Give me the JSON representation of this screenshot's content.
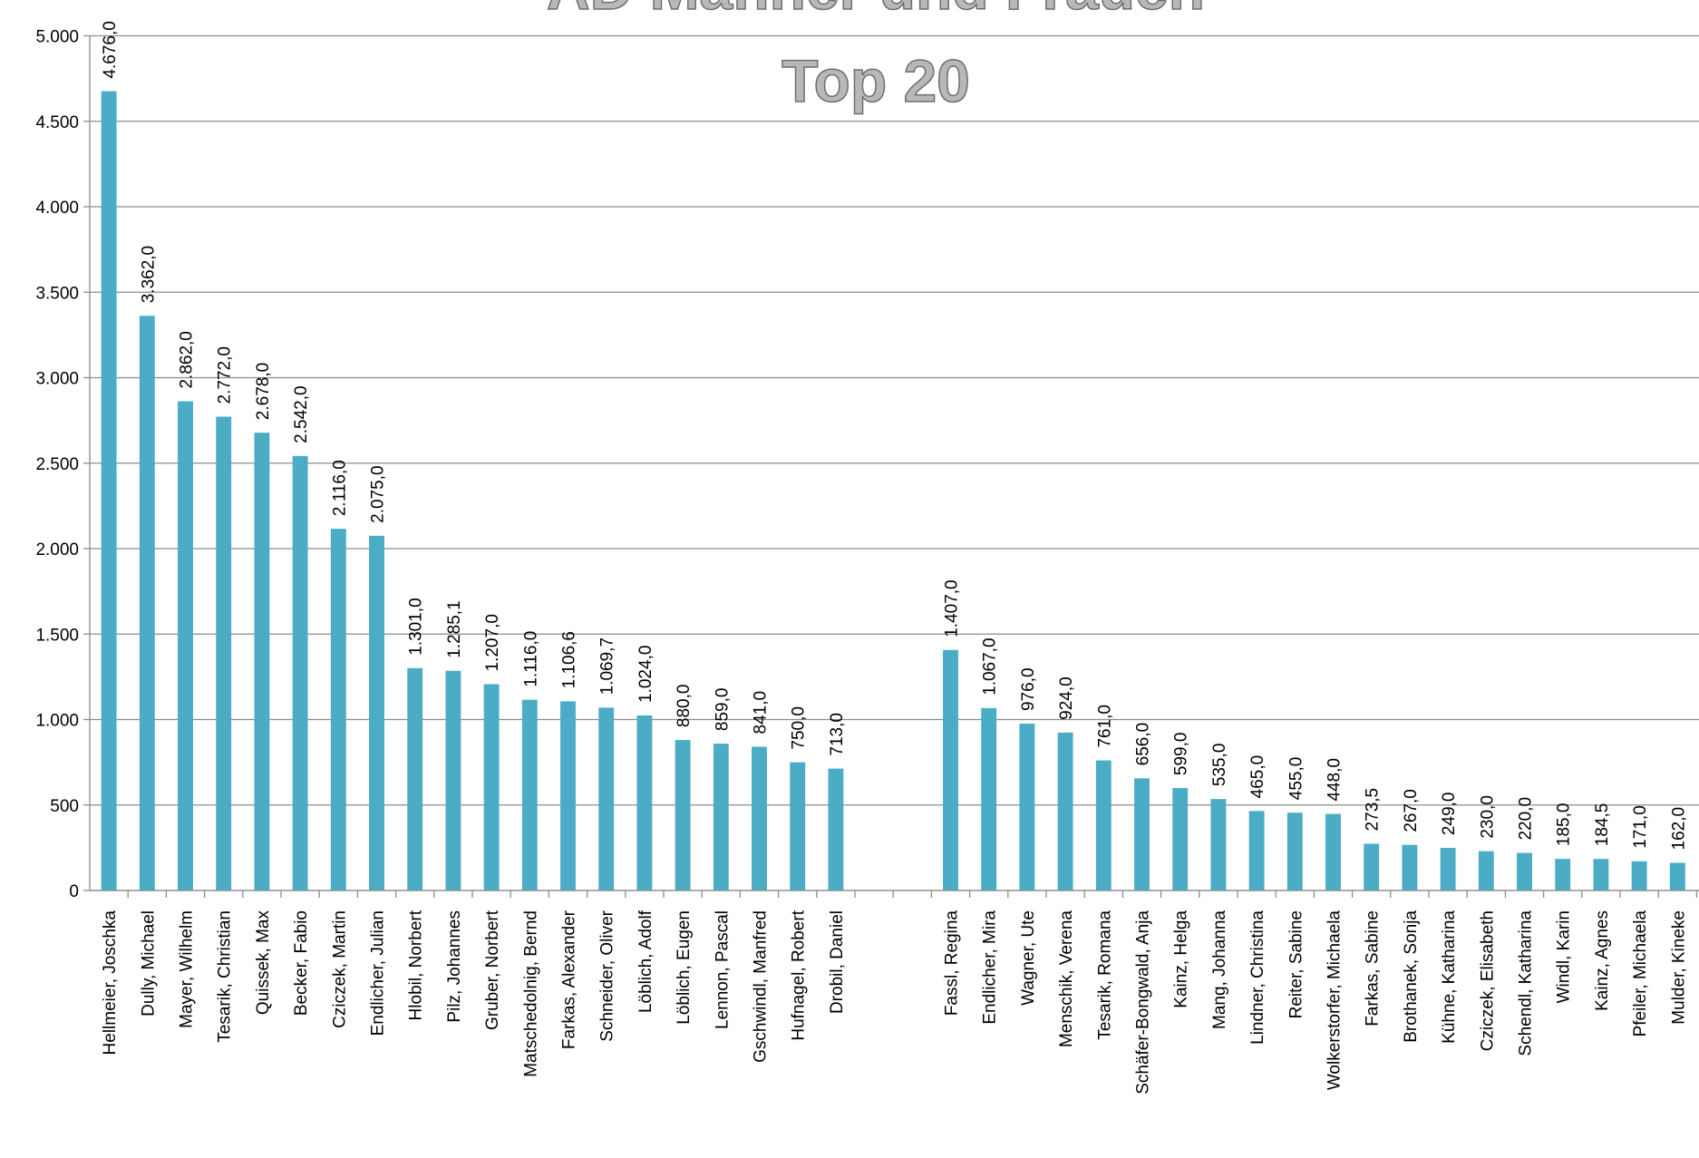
{
  "chart_data": {
    "type": "bar",
    "title": "AD Männer und Frauen",
    "subtitle": "Top 20",
    "categories": [
      "Hellmeier, Joschka",
      "Dully, Michael",
      "Mayer, Wilhelm",
      "Tesarik, Christian",
      "Quissek, Max",
      "Becker, Fabio",
      "Cziczek, Martin",
      "Endlicher, Julian",
      "Hlobil, Norbert",
      "Pilz, Johannes",
      "Gruber, Norbert",
      "Matschedolnig, Bernd",
      "Farkas, Alexander",
      "Schneider, Oliver",
      "Löblich, Adolf",
      "Löblich, Eugen",
      "Lennon, Pascal",
      "Gschwindl, Manfred",
      "Hufnagel, Robert",
      "Drobil, Daniel",
      null,
      null,
      "Fassl, Regina",
      "Endlicher, Mira",
      "Wagner, Ute",
      "Menschik, Verena",
      "Tesarik, Romana",
      "Schäfer-Bongwald, Anja",
      "Kainz, Helga",
      "Mang, Johanna",
      "Lindner, Christina",
      "Reiter, Sabine",
      "Wolkerstorfer, Michaela",
      "Farkas, Sabine",
      "Brothanek, Sonja",
      "Kühne, Katharina",
      "Cziczek, Elisabeth",
      "Schendl, Katharina",
      "Windl, Karin",
      "Kainz, Agnes",
      "Pfeiler, Michaela",
      "Mulder, Kineke"
    ],
    "values": [
      4676,
      3362,
      2862,
      2772,
      2678,
      2542,
      2116,
      2075,
      1301,
      1285.1,
      1207,
      1116,
      1106.6,
      1069.7,
      1024,
      880,
      859,
      841,
      750,
      713,
      null,
      null,
      1407,
      1067,
      976,
      924,
      761,
      656,
      599,
      535,
      465,
      455,
      448,
      273.5,
      267,
      249,
      230,
      220,
      185,
      184.5,
      171,
      162
    ],
    "value_labels": [
      "4.676,0",
      "3.362,0",
      "2.862,0",
      "2.772,0",
      "2.678,0",
      "2.542,0",
      "2.116,0",
      "2.075,0",
      "1.301,0",
      "1.285,1",
      "1.207,0",
      "1.116,0",
      "1.106,6",
      "1.069,7",
      "1.024,0",
      "880,0",
      "859,0",
      "841,0",
      "750,0",
      "713,0",
      null,
      null,
      "1.407,0",
      "1.067,0",
      "976,0",
      "924,0",
      "761,0",
      "656,0",
      "599,0",
      "535,0",
      "465,0",
      "455,0",
      "448,0",
      "273,5",
      "267,0",
      "249,0",
      "230,0",
      "220,0",
      "185,0",
      "184,5",
      "171,0",
      "162,0"
    ],
    "color": "#4bacc6",
    "ylim": [
      0,
      5000
    ],
    "yticks": [
      0,
      500,
      {
        "value": 1000,
        "label": "1.000"
      },
      {
        "value": 1500,
        "label": "1.500"
      },
      {
        "value": 2000,
        "label": "2.000"
      },
      {
        "value": 2500,
        "label": "2.500"
      },
      {
        "value": 3000,
        "label": "3.000"
      },
      {
        "value": 3500,
        "label": "3.500"
      },
      {
        "value": 4000,
        "label": "4.000"
      },
      {
        "value": 4500,
        "label": "4.500"
      },
      {
        "value": 5000,
        "label": "5.000"
      }
    ],
    "grid": true
  }
}
